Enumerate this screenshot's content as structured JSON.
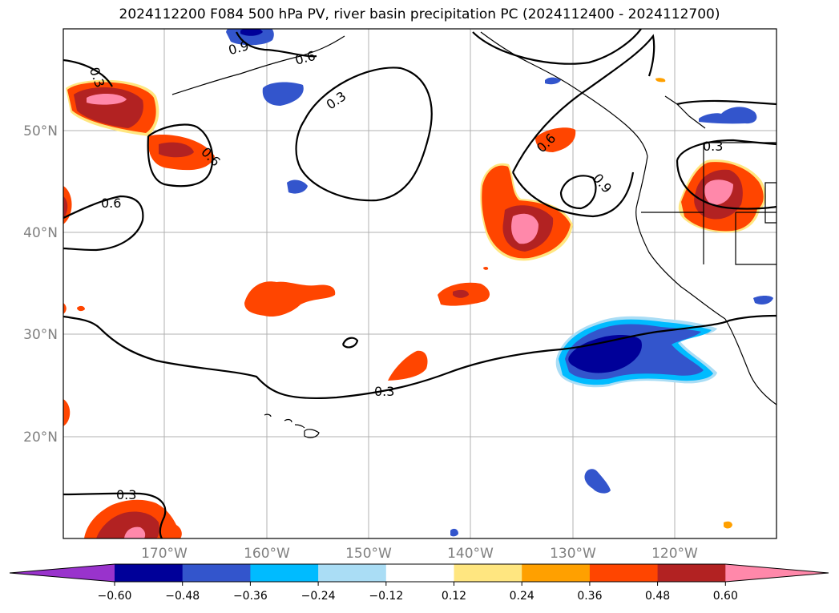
{
  "title": "2024112200 F084 500 hPa PV, river basin precipitation PC (2024112400 - 2024112700)",
  "map": {
    "lon_labels": [
      "170°W",
      "160°W",
      "150°W",
      "140°W",
      "130°W",
      "120°W"
    ],
    "lat_labels": [
      "50°N",
      "40°N",
      "30°N",
      "20°N"
    ],
    "contour_labels": [
      "0.3",
      "0.6",
      "0.6",
      "0.9",
      "0.3",
      "0.6",
      "0.6",
      "0.9",
      "0.3",
      "0.3",
      "0.3"
    ]
  },
  "colorbar": {
    "ticks": [
      "−0.60",
      "−0.48",
      "−0.36",
      "−0.24",
      "−0.12",
      "0.12",
      "0.24",
      "0.36",
      "0.48",
      "0.60"
    ],
    "colors": [
      "#9933cc",
      "#000099",
      "#3355cc",
      "#00bbff",
      "#aaddf5",
      "#ffffff",
      "#ffe680",
      "#ffa000",
      "#ff4500",
      "#b22222",
      "#ff88aa"
    ]
  },
  "colors": {
    "pos_012": "#ffe680",
    "pos_024": "#ffa000",
    "pos_036": "#ff4500",
    "pos_048": "#b22222",
    "pos_060": "#ff88aa",
    "neg_012": "#aaddf5",
    "neg_024": "#00bbff",
    "neg_036": "#3355cc",
    "neg_048": "#000099"
  }
}
